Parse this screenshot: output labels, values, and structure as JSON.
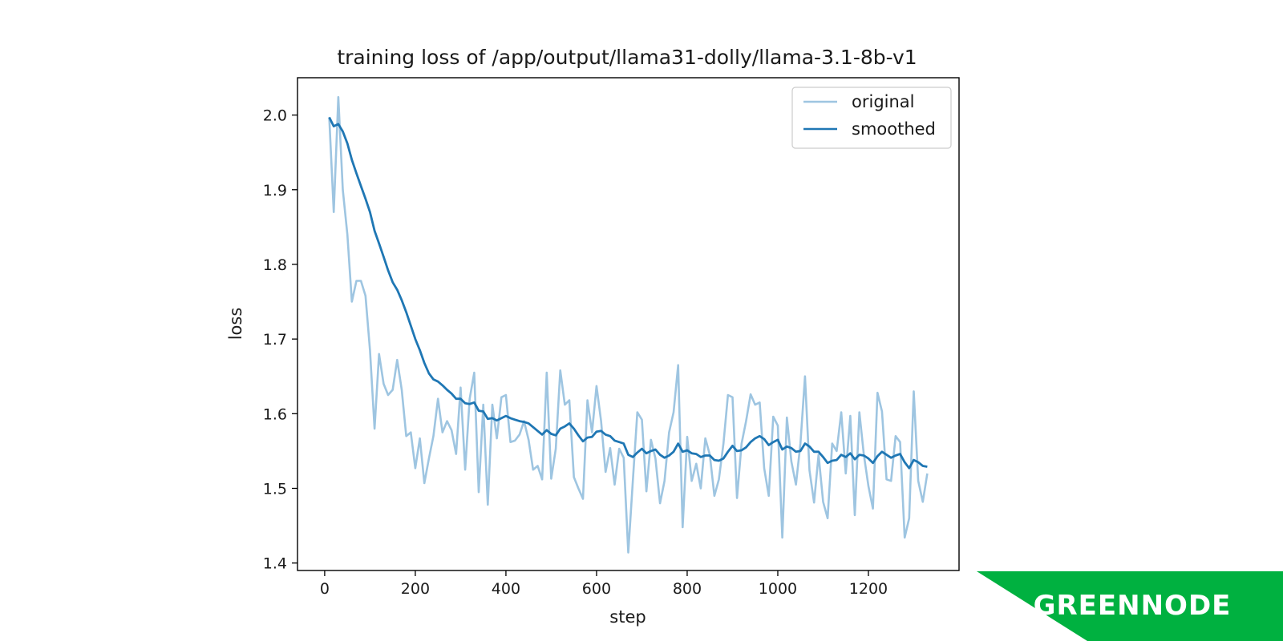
{
  "chart_data": {
    "type": "line",
    "title": "training loss of /app/output/llama31-dolly/llama-3.1-8b-v1",
    "xlabel": "step",
    "ylabel": "loss",
    "xlim": [
      -60,
      1400
    ],
    "ylim": [
      1.39,
      2.05
    ],
    "x_ticks": [
      0,
      200,
      400,
      600,
      800,
      1000,
      1200
    ],
    "y_ticks": [
      1.4,
      1.5,
      1.6,
      1.7,
      1.8,
      1.9,
      2.0
    ],
    "x_tick_labels": [
      "0",
      "200",
      "400",
      "600",
      "800",
      "1000",
      "1200"
    ],
    "y_tick_labels": [
      "1.4",
      "1.5",
      "1.6",
      "1.7",
      "1.8",
      "1.9",
      "2.0"
    ],
    "grid": false,
    "legend": {
      "placement": "upper right"
    },
    "series": [
      {
        "name": "original",
        "color": "#9ec5e1",
        "points": [
          [
            10,
            1.997
          ],
          [
            20,
            1.87
          ],
          [
            30,
            2.024
          ],
          [
            40,
            1.9
          ],
          [
            50,
            1.84
          ],
          [
            60,
            1.75
          ],
          [
            70,
            1.778
          ],
          [
            80,
            1.778
          ],
          [
            90,
            1.758
          ],
          [
            100,
            1.685
          ],
          [
            110,
            1.58
          ],
          [
            120,
            1.68
          ],
          [
            130,
            1.64
          ],
          [
            140,
            1.625
          ],
          [
            150,
            1.632
          ],
          [
            160,
            1.672
          ],
          [
            170,
            1.632
          ],
          [
            180,
            1.57
          ],
          [
            190,
            1.575
          ],
          [
            200,
            1.527
          ],
          [
            210,
            1.567
          ],
          [
            220,
            1.507
          ],
          [
            230,
            1.54
          ],
          [
            240,
            1.57
          ],
          [
            250,
            1.62
          ],
          [
            260,
            1.575
          ],
          [
            270,
            1.59
          ],
          [
            280,
            1.578
          ],
          [
            290,
            1.546
          ],
          [
            300,
            1.635
          ],
          [
            310,
            1.525
          ],
          [
            320,
            1.62
          ],
          [
            330,
            1.655
          ],
          [
            340,
            1.495
          ],
          [
            350,
            1.612
          ],
          [
            360,
            1.478
          ],
          [
            370,
            1.612
          ],
          [
            380,
            1.567
          ],
          [
            390,
            1.622
          ],
          [
            400,
            1.625
          ],
          [
            410,
            1.562
          ],
          [
            420,
            1.564
          ],
          [
            430,
            1.572
          ],
          [
            440,
            1.59
          ],
          [
            450,
            1.565
          ],
          [
            460,
            1.525
          ],
          [
            470,
            1.53
          ],
          [
            480,
            1.512
          ],
          [
            490,
            1.655
          ],
          [
            500,
            1.513
          ],
          [
            510,
            1.553
          ],
          [
            520,
            1.658
          ],
          [
            530,
            1.612
          ],
          [
            540,
            1.618
          ],
          [
            550,
            1.515
          ],
          [
            560,
            1.5
          ],
          [
            570,
            1.486
          ],
          [
            580,
            1.618
          ],
          [
            590,
            1.575
          ],
          [
            600,
            1.637
          ],
          [
            610,
            1.59
          ],
          [
            620,
            1.522
          ],
          [
            630,
            1.554
          ],
          [
            640,
            1.505
          ],
          [
            650,
            1.553
          ],
          [
            660,
            1.541
          ],
          [
            670,
            1.414
          ],
          [
            680,
            1.51
          ],
          [
            690,
            1.602
          ],
          [
            700,
            1.592
          ],
          [
            710,
            1.496
          ],
          [
            720,
            1.565
          ],
          [
            730,
            1.54
          ],
          [
            740,
            1.48
          ],
          [
            750,
            1.51
          ],
          [
            760,
            1.575
          ],
          [
            770,
            1.602
          ],
          [
            780,
            1.665
          ],
          [
            790,
            1.448
          ],
          [
            800,
            1.569
          ],
          [
            810,
            1.51
          ],
          [
            820,
            1.533
          ],
          [
            830,
            1.5
          ],
          [
            840,
            1.567
          ],
          [
            850,
            1.545
          ],
          [
            860,
            1.49
          ],
          [
            870,
            1.512
          ],
          [
            880,
            1.56
          ],
          [
            890,
            1.625
          ],
          [
            900,
            1.622
          ],
          [
            910,
            1.487
          ],
          [
            920,
            1.56
          ],
          [
            930,
            1.59
          ],
          [
            940,
            1.626
          ],
          [
            950,
            1.612
          ],
          [
            960,
            1.615
          ],
          [
            970,
            1.527
          ],
          [
            980,
            1.49
          ],
          [
            990,
            1.596
          ],
          [
            1000,
            1.584
          ],
          [
            1010,
            1.434
          ],
          [
            1020,
            1.595
          ],
          [
            1030,
            1.536
          ],
          [
            1040,
            1.505
          ],
          [
            1050,
            1.56
          ],
          [
            1060,
            1.65
          ],
          [
            1070,
            1.524
          ],
          [
            1080,
            1.481
          ],
          [
            1090,
            1.545
          ],
          [
            1100,
            1.482
          ],
          [
            1110,
            1.46
          ],
          [
            1120,
            1.56
          ],
          [
            1130,
            1.55
          ],
          [
            1140,
            1.602
          ],
          [
            1150,
            1.52
          ],
          [
            1160,
            1.597
          ],
          [
            1170,
            1.464
          ],
          [
            1180,
            1.602
          ],
          [
            1190,
            1.545
          ],
          [
            1200,
            1.503
          ],
          [
            1210,
            1.473
          ],
          [
            1220,
            1.628
          ],
          [
            1230,
            1.603
          ],
          [
            1240,
            1.512
          ],
          [
            1250,
            1.51
          ],
          [
            1260,
            1.57
          ],
          [
            1270,
            1.562
          ],
          [
            1280,
            1.434
          ],
          [
            1290,
            1.46
          ],
          [
            1300,
            1.63
          ],
          [
            1310,
            1.51
          ],
          [
            1320,
            1.482
          ],
          [
            1330,
            1.52
          ]
        ]
      },
      {
        "name": "smoothed",
        "color": "#1f77b4",
        "points": [
          [
            10,
            1.997
          ],
          [
            20,
            1.985
          ],
          [
            30,
            1.988
          ],
          [
            40,
            1.978
          ],
          [
            50,
            1.962
          ],
          [
            60,
            1.94
          ],
          [
            70,
            1.922
          ],
          [
            80,
            1.905
          ],
          [
            90,
            1.888
          ],
          [
            100,
            1.87
          ],
          [
            110,
            1.845
          ],
          [
            120,
            1.828
          ],
          [
            130,
            1.81
          ],
          [
            140,
            1.792
          ],
          [
            150,
            1.776
          ],
          [
            160,
            1.766
          ],
          [
            170,
            1.752
          ],
          [
            180,
            1.736
          ],
          [
            190,
            1.718
          ],
          [
            200,
            1.7
          ],
          [
            210,
            1.685
          ],
          [
            220,
            1.668
          ],
          [
            230,
            1.654
          ],
          [
            240,
            1.646
          ],
          [
            250,
            1.643
          ],
          [
            260,
            1.638
          ],
          [
            270,
            1.632
          ],
          [
            280,
            1.627
          ],
          [
            290,
            1.62
          ],
          [
            300,
            1.62
          ],
          [
            310,
            1.614
          ],
          [
            320,
            1.613
          ],
          [
            330,
            1.615
          ],
          [
            340,
            1.604
          ],
          [
            350,
            1.603
          ],
          [
            360,
            1.593
          ],
          [
            370,
            1.594
          ],
          [
            380,
            1.591
          ],
          [
            390,
            1.594
          ],
          [
            400,
            1.597
          ],
          [
            410,
            1.594
          ],
          [
            420,
            1.592
          ],
          [
            430,
            1.59
          ],
          [
            440,
            1.589
          ],
          [
            450,
            1.587
          ],
          [
            460,
            1.582
          ],
          [
            470,
            1.577
          ],
          [
            480,
            1.572
          ],
          [
            490,
            1.578
          ],
          [
            500,
            1.573
          ],
          [
            510,
            1.571
          ],
          [
            520,
            1.58
          ],
          [
            530,
            1.583
          ],
          [
            540,
            1.587
          ],
          [
            550,
            1.58
          ],
          [
            560,
            1.571
          ],
          [
            570,
            1.563
          ],
          [
            580,
            1.568
          ],
          [
            590,
            1.569
          ],
          [
            600,
            1.576
          ],
          [
            610,
            1.577
          ],
          [
            620,
            1.572
          ],
          [
            630,
            1.57
          ],
          [
            640,
            1.564
          ],
          [
            650,
            1.562
          ],
          [
            660,
            1.56
          ],
          [
            670,
            1.545
          ],
          [
            680,
            1.542
          ],
          [
            690,
            1.548
          ],
          [
            700,
            1.553
          ],
          [
            710,
            1.547
          ],
          [
            720,
            1.55
          ],
          [
            730,
            1.552
          ],
          [
            740,
            1.545
          ],
          [
            750,
            1.541
          ],
          [
            760,
            1.544
          ],
          [
            770,
            1.549
          ],
          [
            780,
            1.56
          ],
          [
            790,
            1.549
          ],
          [
            800,
            1.551
          ],
          [
            810,
            1.547
          ],
          [
            820,
            1.546
          ],
          [
            830,
            1.542
          ],
          [
            840,
            1.544
          ],
          [
            850,
            1.544
          ],
          [
            860,
            1.538
          ],
          [
            870,
            1.537
          ],
          [
            880,
            1.54
          ],
          [
            890,
            1.549
          ],
          [
            900,
            1.557
          ],
          [
            910,
            1.55
          ],
          [
            920,
            1.551
          ],
          [
            930,
            1.555
          ],
          [
            940,
            1.562
          ],
          [
            950,
            1.567
          ],
          [
            960,
            1.57
          ],
          [
            970,
            1.566
          ],
          [
            980,
            1.558
          ],
          [
            990,
            1.562
          ],
          [
            1000,
            1.565
          ],
          [
            1010,
            1.552
          ],
          [
            1020,
            1.556
          ],
          [
            1030,
            1.554
          ],
          [
            1040,
            1.549
          ],
          [
            1050,
            1.55
          ],
          [
            1060,
            1.56
          ],
          [
            1070,
            1.556
          ],
          [
            1080,
            1.549
          ],
          [
            1090,
            1.549
          ],
          [
            1100,
            1.542
          ],
          [
            1110,
            1.534
          ],
          [
            1120,
            1.537
          ],
          [
            1130,
            1.538
          ],
          [
            1140,
            1.545
          ],
          [
            1150,
            1.542
          ],
          [
            1160,
            1.547
          ],
          [
            1170,
            1.539
          ],
          [
            1180,
            1.545
          ],
          [
            1190,
            1.544
          ],
          [
            1200,
            1.54
          ],
          [
            1210,
            1.534
          ],
          [
            1220,
            1.543
          ],
          [
            1230,
            1.549
          ],
          [
            1240,
            1.545
          ],
          [
            1250,
            1.541
          ],
          [
            1260,
            1.544
          ],
          [
            1270,
            1.546
          ],
          [
            1280,
            1.535
          ],
          [
            1290,
            1.527
          ],
          [
            1300,
            1.538
          ],
          [
            1310,
            1.535
          ],
          [
            1320,
            1.53
          ],
          [
            1330,
            1.529
          ]
        ]
      }
    ]
  },
  "logo": {
    "text": "GREENNODE",
    "color": "#00b140"
  }
}
